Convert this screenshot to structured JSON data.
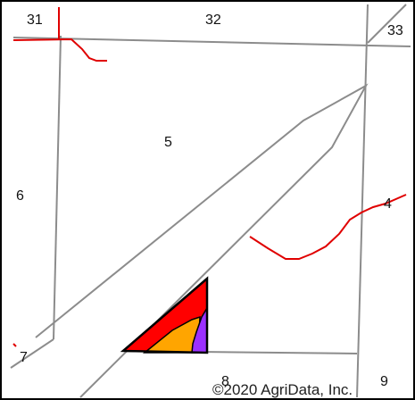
{
  "map": {
    "section_labels": {
      "s31": "31",
      "s32": "32",
      "s33": "33",
      "s5": "5",
      "s6": "6",
      "s4": "4",
      "s7": "7",
      "s8": "8",
      "s9": "9"
    },
    "copyright": "©2020 AgriData, Inc.",
    "colors": {
      "border": "#000000",
      "section_lines": "#8c8c8c",
      "stream": "#e00000",
      "field_red": "#ff0000",
      "field_orange": "#ffa500",
      "field_purple": "#9b30ff"
    }
  }
}
